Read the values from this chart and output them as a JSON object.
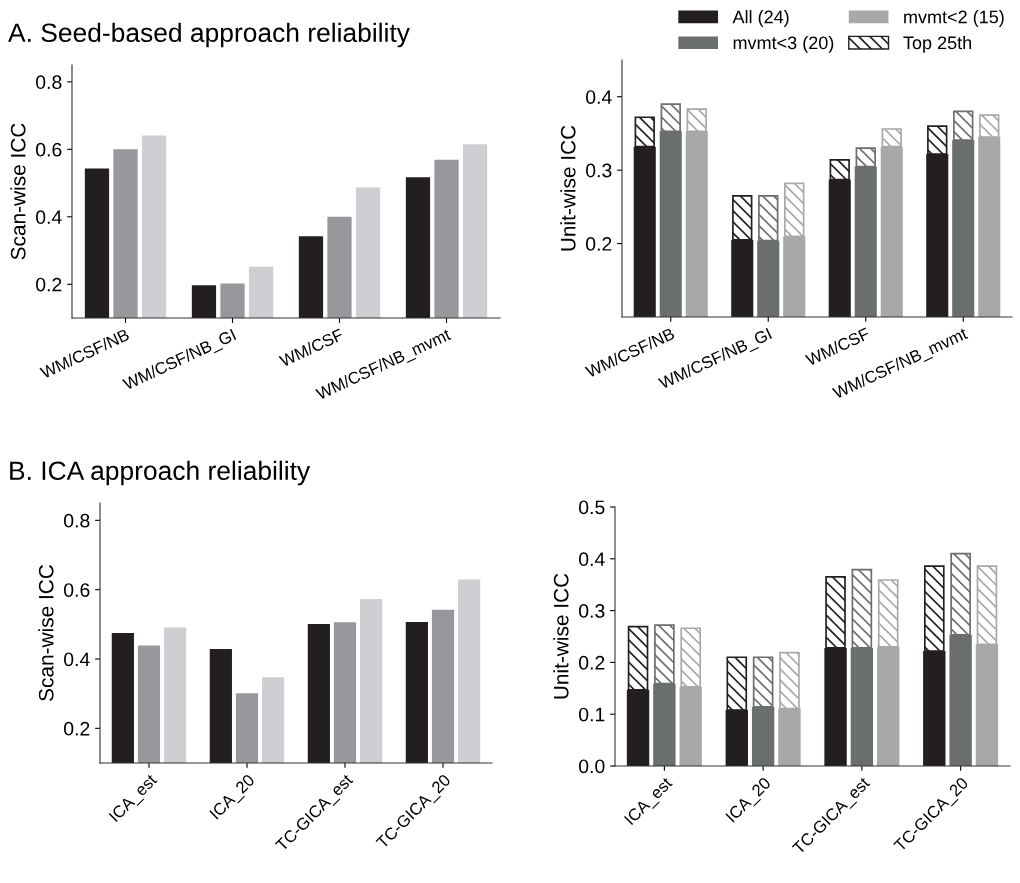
{
  "chart_data": [
    {
      "type": "bar",
      "title": "A. Seed-based approach reliability",
      "ylabel": "Scan-wise ICC",
      "categories": [
        "WM/CSF/NB",
        "WM/CSF/NB_GI",
        "WM/CSF",
        "WM/CSF/NB_mvmt"
      ],
      "ylim": [
        0.1,
        0.85
      ],
      "yticks": [
        0.2,
        0.4,
        0.6,
        0.8
      ],
      "grid": false,
      "legend": false,
      "series": [
        {
          "color": "#231f20",
          "values": [
            0.543,
            0.197,
            0.342,
            0.517
          ]
        },
        {
          "color": "#98979b",
          "values": [
            0.6,
            0.202,
            0.4,
            0.569
          ]
        },
        {
          "color": "#cfced2",
          "values": [
            0.641,
            0.252,
            0.487,
            0.615
          ]
        }
      ]
    },
    {
      "type": "bar",
      "ylabel": "Unit-wise ICC",
      "categories": [
        "WM/CSF/NB",
        "WM/CSF/NB_GI",
        "WM/CSF",
        "WM/CSF/NB_mvmt"
      ],
      "ylim": [
        0.1,
        0.45
      ],
      "yticks": [
        0.2,
        0.3,
        0.4
      ],
      "grid": false,
      "legend": "top right",
      "series": [
        {
          "name": "All (24)",
          "color": "#231f20",
          "values": [
            0.332,
            0.205,
            0.287,
            0.322
          ]
        },
        {
          "name": "mvmt<3 (20)",
          "color": "#6b6e6e",
          "values": [
            0.353,
            0.204,
            0.305,
            0.341
          ]
        },
        {
          "name": "mvmt<2 (15)",
          "color": "#a7a9a9",
          "values": [
            0.353,
            0.21,
            0.332,
            0.345
          ]
        },
        {
          "name": "Top 25th",
          "color": "#231f20",
          "base": [
            0.332,
            0.205,
            0.287,
            0.322
          ],
          "values": [
            0.04,
            0.06,
            0.027,
            0.038
          ]
        },
        {
          "color": "#6b6e6e",
          "base": [
            0.353,
            0.204,
            0.305,
            0.341
          ],
          "values": [
            0.037,
            0.061,
            0.025,
            0.039
          ]
        },
        {
          "color": "#a7a9a9",
          "base": [
            0.353,
            0.21,
            0.332,
            0.345
          ],
          "values": [
            0.03,
            0.072,
            0.024,
            0.03
          ]
        }
      ]
    },
    {
      "type": "bar",
      "title": "B. ICA approach reliability",
      "ylabel": "Scan-wise ICC",
      "categories": [
        "ICA_est",
        "ICA_20",
        "TC-GICA_est",
        "TC-GICA_20"
      ],
      "ylim": [
        0.1,
        0.85
      ],
      "yticks": [
        0.2,
        0.4,
        0.6,
        0.8
      ],
      "grid": false,
      "legend": false,
      "series": [
        {
          "color": "#231f20",
          "values": [
            0.475,
            0.429,
            0.501,
            0.507
          ]
        },
        {
          "color": "#98979b",
          "values": [
            0.439,
            0.301,
            0.506,
            0.542
          ]
        },
        {
          "color": "#cfced2",
          "values": [
            0.491,
            0.347,
            0.573,
            0.629
          ]
        }
      ]
    },
    {
      "type": "bar",
      "ylabel": "Unit-wise ICC",
      "categories": [
        "ICA_est",
        "ICA_20",
        "TC-GICA_est",
        "TC-GICA_20"
      ],
      "ylim": [
        0.0,
        0.5
      ],
      "yticks": [
        {
          "value": 0.0,
          "label": "0.0"
        },
        0.1,
        0.2,
        0.3,
        0.4,
        0.5
      ],
      "grid": false,
      "legend": false,
      "series": [
        {
          "color": "#231f20",
          "values": [
            0.147,
            0.108,
            0.228,
            0.222
          ]
        },
        {
          "color": "#6b6e6e",
          "values": [
            0.159,
            0.114,
            0.228,
            0.253
          ]
        },
        {
          "color": "#a7a9a9",
          "values": [
            0.153,
            0.111,
            0.23,
            0.235
          ]
        },
        {
          "color": "#231f20",
          "base": [
            0.147,
            0.108,
            0.228,
            0.222
          ],
          "values": [
            0.122,
            0.102,
            0.137,
            0.164
          ]
        },
        {
          "color": "#6b6e6e",
          "base": [
            0.159,
            0.114,
            0.228,
            0.253
          ],
          "values": [
            0.113,
            0.096,
            0.151,
            0.157
          ]
        },
        {
          "color": "#a7a9a9",
          "base": [
            0.153,
            0.111,
            0.23,
            0.235
          ],
          "values": [
            0.113,
            0.108,
            0.129,
            0.151
          ]
        }
      ]
    }
  ]
}
